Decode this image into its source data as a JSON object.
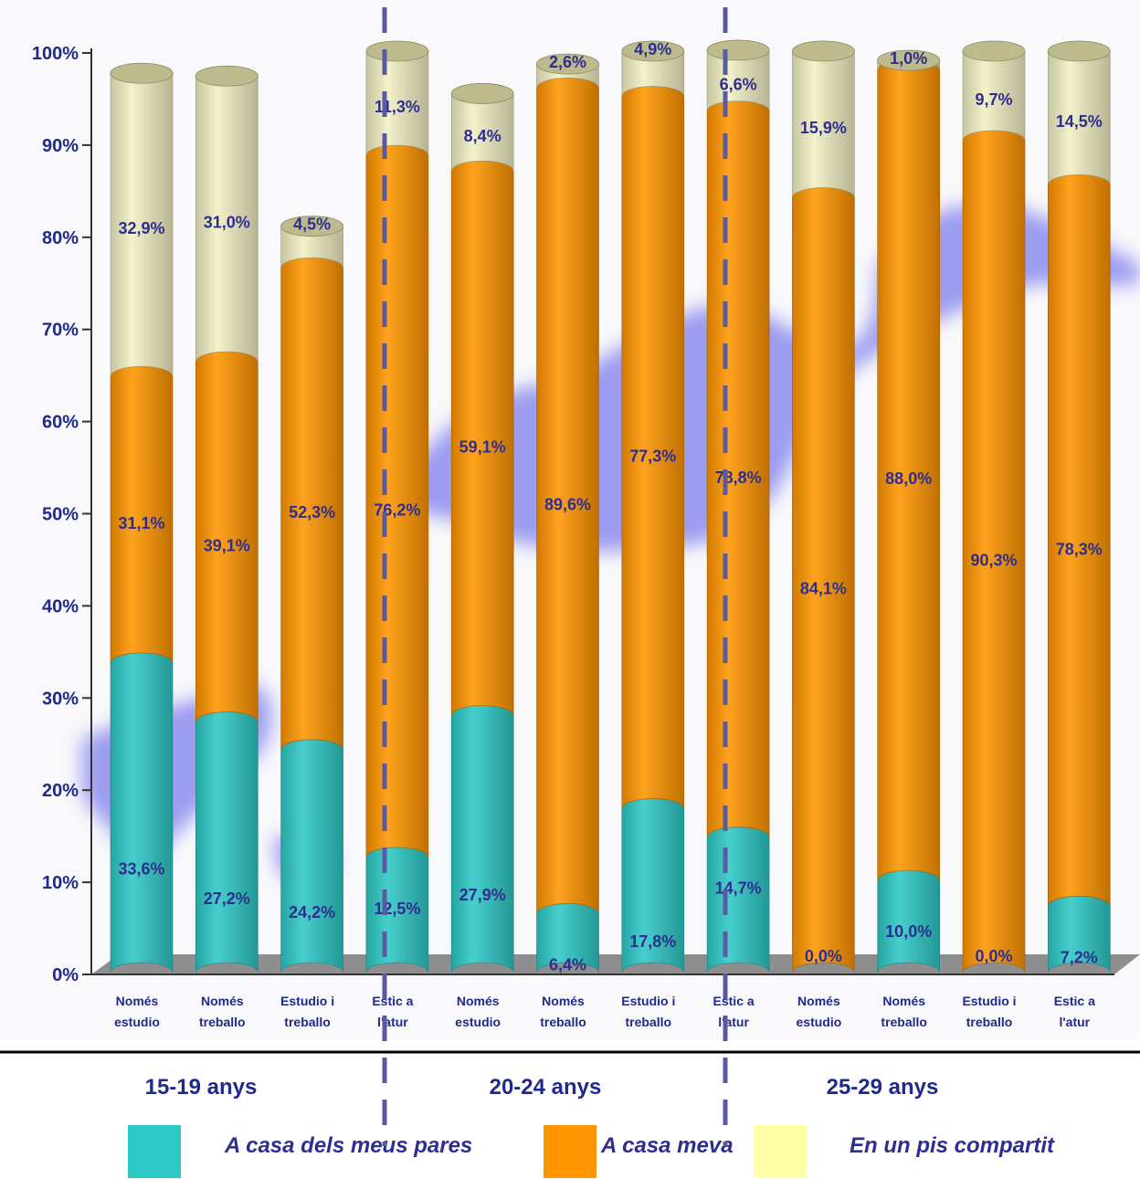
{
  "chart_data": {
    "type": "bar",
    "stacked": true,
    "yaxis": {
      "ylim": [
        0,
        100
      ],
      "ticks": [
        "0%",
        "10%",
        "20%",
        "30%",
        "40%",
        "50%",
        "60%",
        "70%",
        "80%",
        "90%",
        "100%"
      ]
    },
    "categories": [
      {
        "line1": "Només",
        "line2": "estudio"
      },
      {
        "line1": "Només",
        "line2": "treballo"
      },
      {
        "line1": "Estudio i",
        "line2": "treballo"
      },
      {
        "line1": "Estic a",
        "line2": "l'atur"
      },
      {
        "line1": "Només",
        "line2": "estudio"
      },
      {
        "line1": "Només",
        "line2": "treballo"
      },
      {
        "line1": "Estudio i",
        "line2": "treballo"
      },
      {
        "line1": "Estic a",
        "line2": "l'atur"
      },
      {
        "line1": "Només",
        "line2": "estudio"
      },
      {
        "line1": "Només",
        "line2": "treballo"
      },
      {
        "line1": "Estudio i",
        "line2": "treballo"
      },
      {
        "line1": "Estic a",
        "line2": "l'atur"
      }
    ],
    "groups": [
      {
        "label": "15-19 anys",
        "span": [
          0,
          3
        ]
      },
      {
        "label": "20-24 anys",
        "span": [
          4,
          7
        ]
      },
      {
        "label": "25-29 anys",
        "span": [
          8,
          11
        ]
      }
    ],
    "series": [
      {
        "name": "A casa dels meus pares",
        "color": "#2ec9c6",
        "values": [
          33.6,
          27.2,
          24.2,
          12.5,
          27.9,
          6.4,
          17.8,
          14.7,
          0.0,
          10.0,
          0.0,
          7.2
        ],
        "labels": [
          "33,6%",
          "27,2%",
          "24,2%",
          "12,5%",
          "27,9%",
          "6,4%",
          "17,8%",
          "14,7%",
          "0,0%",
          "10,0%",
          "0,0%",
          "7,2%"
        ]
      },
      {
        "name": "A casa meva",
        "color": "#ff9500",
        "values": [
          31.1,
          39.1,
          52.3,
          76.2,
          59.1,
          89.6,
          77.3,
          78.8,
          84.1,
          88.0,
          90.3,
          78.3
        ],
        "labels": [
          "31,1%",
          "39,1%",
          "52,3%",
          "76,2%",
          "59,1%",
          "89,6%",
          "77,3%",
          "78,8%",
          "84,1%",
          "88,0%",
          "90,3%",
          "78,3%"
        ]
      },
      {
        "name": "En un pis compartit",
        "color": "#f2f0c4",
        "values": [
          32.9,
          31.0,
          4.5,
          11.3,
          8.4,
          2.6,
          4.9,
          6.6,
          15.9,
          1.0,
          9.7,
          14.5
        ],
        "labels": [
          "32,9%",
          "31,0%",
          "4,5%",
          "11,3%",
          "8,4%",
          "2,6%",
          "4,9%",
          "6,6%",
          "15,9%",
          "1,0%",
          "9,7%",
          "14,5%"
        ]
      }
    ],
    "legend": {
      "position": "bottom",
      "items": [
        {
          "label": "A casa dels meus pares",
          "color": "#2ec9c6"
        },
        {
          "label": "A casa meva",
          "color": "#ff9500"
        },
        {
          "label": "En un pis compartit",
          "color": "#ffffa8"
        }
      ]
    }
  }
}
